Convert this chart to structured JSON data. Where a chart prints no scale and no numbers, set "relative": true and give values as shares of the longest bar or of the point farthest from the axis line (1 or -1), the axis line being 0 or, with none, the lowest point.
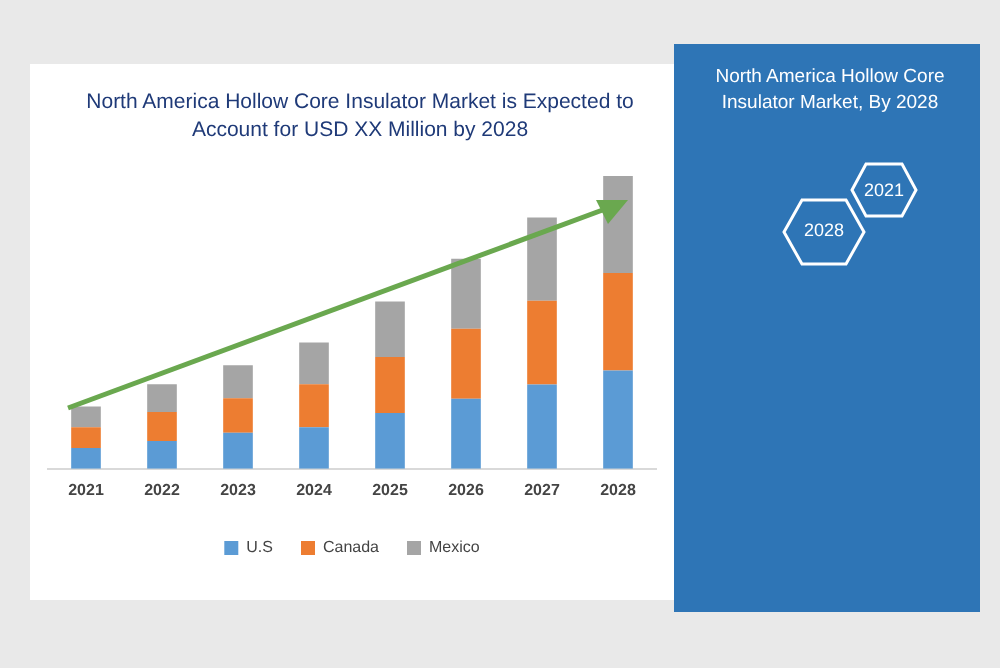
{
  "chart_data": {
    "type": "bar",
    "stacked": true,
    "relative": true,
    "title": "North America Hollow Core Insulator Market is Expected to Account for USD XX Million by 2028",
    "categories": [
      "2021",
      "2022",
      "2023",
      "2024",
      "2025",
      "2026",
      "2027",
      "2028"
    ],
    "series": [
      {
        "name": "U.S",
        "color": "#5b9bd5",
        "values": [
          0.071,
          0.095,
          0.123,
          0.142,
          0.191,
          0.239,
          0.288,
          0.336
        ]
      },
      {
        "name": "Canada",
        "color": "#ed7d31",
        "values": [
          0.071,
          0.099,
          0.118,
          0.147,
          0.191,
          0.239,
          0.286,
          0.333
        ]
      },
      {
        "name": "Mexico",
        "color": "#a5a5a5",
        "values": [
          0.071,
          0.095,
          0.113,
          0.142,
          0.189,
          0.239,
          0.284,
          0.331
        ]
      }
    ],
    "legend": "bottom",
    "grid": false,
    "annotations": [
      "North America Hollow Core Insulator Market, By 2028",
      "2028",
      "2021"
    ]
  }
}
